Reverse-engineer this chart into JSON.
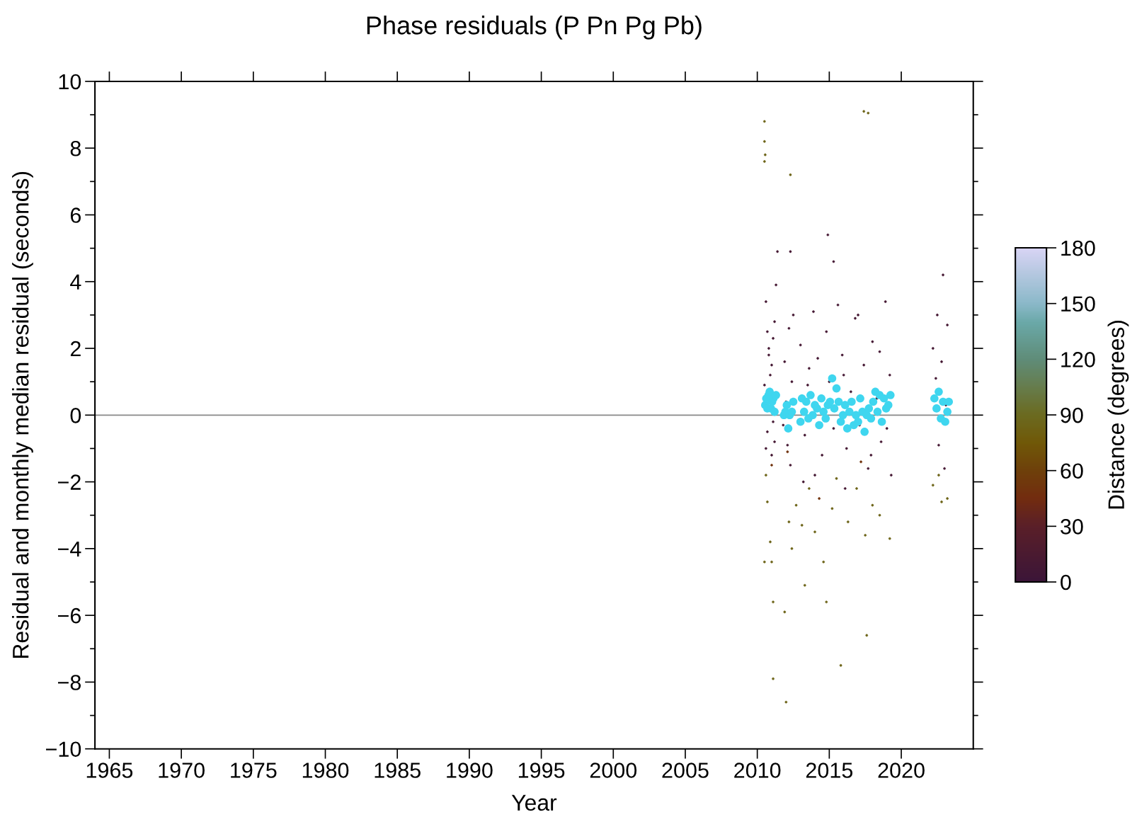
{
  "chart_data": {
    "type": "scatter",
    "title": "Phase residuals (P Pn Pg Pb)",
    "xlabel": "Year",
    "ylabel": "Residual and monthly median residual (seconds)",
    "clabel": "Distance (degrees)",
    "xlim": [
      1964,
      2025
    ],
    "xticks": [
      1965,
      1970,
      1975,
      1980,
      1985,
      1990,
      1995,
      2000,
      2005,
      2010,
      2015,
      2020
    ],
    "ylim": [
      -10,
      10
    ],
    "yticks": [
      {
        "value": -10,
        "label": "−10"
      },
      {
        "value": -8,
        "label": "−8"
      },
      {
        "value": -6,
        "label": "−6"
      },
      {
        "value": -4,
        "label": "−4"
      },
      {
        "value": -2,
        "label": "−2"
      },
      0,
      2,
      4,
      6,
      8,
      10
    ],
    "clim": [
      0,
      180
    ],
    "cticks": [
      0,
      30,
      60,
      90,
      120,
      150,
      180
    ],
    "ref_lines": [
      {
        "axis": "y",
        "value": 0,
        "color": "#888888"
      }
    ],
    "grid": false,
    "legend": false,
    "marker": "circle",
    "series": [
      {
        "x": [
          2010.6,
          2010.7,
          2010.8,
          2010.9,
          2011.0,
          2011.1,
          2011.2,
          2010.6,
          2010.8,
          2011.0,
          2011.2,
          2011.3,
          2010.5,
          2010.7,
          2011.1,
          2011.9,
          2012.0,
          2012.1,
          2012.2,
          2012.4,
          2012.3,
          2012.5,
          2011.8,
          2012.3,
          2011.4,
          2013.0,
          2013.3,
          2013.6,
          2013.9,
          2014.2,
          2014.5,
          2014.8,
          2015.0,
          2015.3,
          2015.6,
          2015.9,
          2016.2,
          2016.5,
          2016.8,
          2017.1,
          2017.4,
          2017.7,
          2018.0,
          2018.3,
          2018.6,
          2018.9,
          2019.2,
          2019.3,
          2013.2,
          2014.0,
          2014.9,
          2015.3,
          2016.1,
          2017.0,
          2018.5,
          2019.0,
          2013.5,
          2016.0,
          2017.9,
          2022.2,
          2022.4,
          2022.6,
          2022.8,
          2023.0,
          2023.2,
          2022.9,
          2022.5,
          2023.1,
          2011.0,
          2014.3,
          2017.2,
          2012.1,
          2010.5,
          2010.5,
          2010.55,
          2010.5,
          2012.3,
          2017.4,
          2017.7,
          2010.6,
          2010.7,
          2010.9,
          2010.5,
          2011.0,
          2011.1,
          2011.1,
          2011.9,
          2012.0,
          2012.2,
          2012.4,
          2013.1,
          2013.3,
          2013.6,
          2014.0,
          2014.6,
          2014.8,
          2015.2,
          2015.8,
          2016.3,
          2016.9,
          2017.5,
          2017.6,
          2018.0,
          2018.5,
          2019.2,
          2022.2,
          2022.8,
          2023.2,
          2022.6,
          2015.5,
          2012.7
        ],
        "values": [
          3.4,
          2.5,
          1.8,
          1.2,
          -1.2,
          -0.2,
          -0.8,
          -1.0,
          2.0,
          1.5,
          2.8,
          3.9,
          0.9,
          -0.5,
          2.3,
          1.6,
          0.4,
          -0.9,
          2.6,
          1.0,
          -1.5,
          3.0,
          -0.3,
          4.9,
          4.9,
          2.1,
          -0.6,
          1.4,
          3.1,
          1.7,
          -1.2,
          2.5,
          1.0,
          -0.4,
          3.3,
          1.8,
          -1.0,
          0.7,
          2.9,
          -0.3,
          1.5,
          -1.6,
          2.2,
          0.5,
          -0.8,
          3.4,
          1.2,
          -1.8,
          -2.0,
          -1.8,
          5.4,
          4.6,
          -2.2,
          3.0,
          1.9,
          -0.4,
          0.9,
          1.2,
          -1.2,
          2.0,
          1.1,
          -0.9,
          1.6,
          -1.6,
          2.7,
          4.2,
          3.0,
          0.3,
          -1.5,
          -2.5,
          -1.4,
          -1.1,
          8.8,
          8.2,
          7.8,
          7.6,
          7.2,
          9.1,
          9.05,
          -1.8,
          -2.6,
          -3.8,
          -4.4,
          -4.4,
          -5.6,
          -7.9,
          -5.9,
          -8.6,
          -3.2,
          -4.0,
          -3.3,
          -5.1,
          -2.2,
          -3.5,
          -4.4,
          -5.6,
          -2.8,
          -7.5,
          -3.2,
          -2.2,
          -3.6,
          -6.6,
          -2.7,
          -3.0,
          -3.7,
          -2.1,
          -2.6,
          -2.5,
          -1.8,
          -1.9,
          -2.7
        ],
        "colors": [
          "#451833",
          "#451833",
          "#451833",
          "#451833",
          "#451833",
          "#451833",
          "#451833",
          "#451833",
          "#451833",
          "#451833",
          "#451833",
          "#451833",
          "#451833",
          "#451833",
          "#451833",
          "#451833",
          "#451833",
          "#451833",
          "#451833",
          "#451833",
          "#451833",
          "#451833",
          "#451833",
          "#451833",
          "#451833",
          "#451833",
          "#451833",
          "#451833",
          "#451833",
          "#451833",
          "#451833",
          "#451833",
          "#451833",
          "#451833",
          "#451833",
          "#451833",
          "#451833",
          "#451833",
          "#451833",
          "#451833",
          "#451833",
          "#451833",
          "#451833",
          "#451833",
          "#451833",
          "#451833",
          "#451833",
          "#451833",
          "#451833",
          "#451833",
          "#451833",
          "#451833",
          "#451833",
          "#451833",
          "#451833",
          "#451833",
          "#451833",
          "#451833",
          "#451833",
          "#451833",
          "#451833",
          "#451833",
          "#451833",
          "#451833",
          "#451833",
          "#451833",
          "#451833",
          "#451833",
          "#71330d",
          "#71330d",
          "#71330d",
          "#71330d",
          "#6d6418",
          "#6d6418",
          "#6d6418",
          "#6d6418",
          "#6d6418",
          "#6d6418",
          "#6d6418",
          "#6d6418",
          "#6d6418",
          "#6d6418",
          "#6d6418",
          "#6d6418",
          "#6d6418",
          "#6d6418",
          "#6d6418",
          "#6d6418",
          "#6d6418",
          "#6d6418",
          "#6d6418",
          "#6d6418",
          "#6d6418",
          "#6d6418",
          "#6d6418",
          "#6d6418",
          "#6d6418",
          "#6d6418",
          "#6d6418",
          "#6d6418",
          "#6d6418",
          "#6d6418",
          "#6d6418",
          "#6d6418",
          "#6d6418",
          "#6d6418",
          "#6d6418",
          "#6d6418",
          "#6d6418",
          "#6d6418",
          "#6d6418"
        ],
        "cvalues": [
          10,
          10,
          10,
          10,
          10,
          10,
          10,
          10,
          10,
          10,
          10,
          10,
          10,
          10,
          10,
          10,
          10,
          10,
          10,
          10,
          10,
          10,
          10,
          10,
          10,
          10,
          10,
          10,
          10,
          10,
          10,
          10,
          10,
          10,
          10,
          10,
          10,
          10,
          10,
          10,
          10,
          10,
          10,
          10,
          10,
          10,
          10,
          10,
          10,
          10,
          10,
          10,
          10,
          10,
          10,
          10,
          10,
          10,
          10,
          10,
          10,
          10,
          10,
          10,
          10,
          10,
          10,
          10,
          50,
          50,
          50,
          50,
          85,
          85,
          85,
          85,
          85,
          85,
          85,
          85,
          85,
          85,
          85,
          85,
          85,
          85,
          85,
          85,
          85,
          85,
          85,
          85,
          85,
          85,
          85,
          85,
          85,
          85,
          85,
          85,
          85,
          85,
          85,
          85,
          85,
          85,
          85,
          85,
          85,
          85,
          85
        ]
      },
      {
        "color": "#3fd6ef",
        "x": [
          2010.55,
          2010.62,
          2010.7,
          2010.78,
          2010.86,
          2010.95,
          2011.03,
          2011.12,
          2011.2,
          2011.3,
          2011.85,
          2011.95,
          2012.05,
          2012.15,
          2012.25,
          2012.4,
          2012.5,
          2013.0,
          2013.1,
          2013.25,
          2013.4,
          2013.55,
          2013.7,
          2013.85,
          2014.0,
          2014.15,
          2014.3,
          2014.45,
          2014.6,
          2014.75,
          2014.9,
          2015.05,
          2015.2,
          2015.35,
          2015.5,
          2015.65,
          2015.8,
          2015.95,
          2016.1,
          2016.25,
          2016.4,
          2016.55,
          2016.7,
          2016.85,
          2017.0,
          2017.15,
          2017.3,
          2017.45,
          2017.6,
          2017.75,
          2017.9,
          2018.05,
          2018.2,
          2018.35,
          2018.5,
          2018.65,
          2018.8,
          2018.95,
          2019.1,
          2019.25,
          2022.3,
          2022.45,
          2022.6,
          2022.75,
          2022.9,
          2023.05,
          2023.2,
          2023.3
        ],
        "values": [
          0.3,
          0.5,
          0.2,
          0.6,
          0.7,
          0.2,
          0.4,
          0.5,
          0.1,
          0.6,
          0.0,
          0.1,
          0.3,
          -0.4,
          0.0,
          0.1,
          0.4,
          -0.2,
          0.5,
          0.1,
          0.4,
          -0.1,
          0.6,
          0.0,
          0.3,
          0.2,
          -0.3,
          0.5,
          0.1,
          -0.1,
          0.3,
          0.4,
          1.1,
          0.2,
          0.8,
          0.4,
          -0.2,
          0.0,
          0.3,
          -0.4,
          0.1,
          0.4,
          -0.3,
          0.0,
          -0.2,
          0.5,
          0.1,
          -0.5,
          0.0,
          0.2,
          -0.1,
          0.4,
          0.7,
          0.1,
          0.6,
          -0.2,
          0.5,
          0.2,
          0.3,
          0.6,
          0.5,
          0.2,
          0.7,
          -0.1,
          0.4,
          -0.2,
          0.1,
          0.4
        ]
      }
    ]
  }
}
